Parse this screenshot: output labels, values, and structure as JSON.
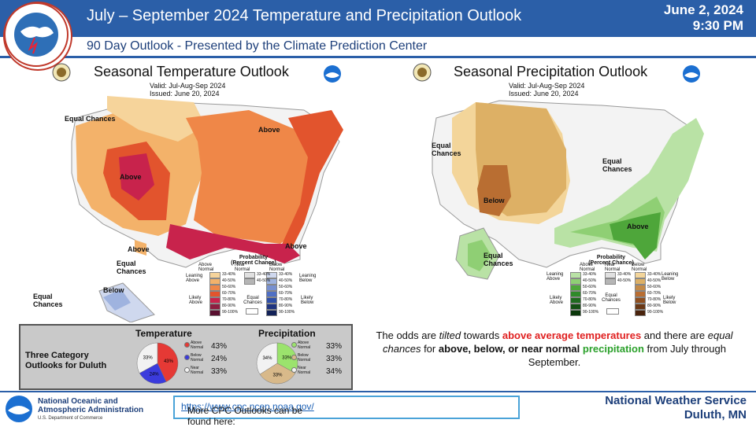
{
  "header": {
    "title": "July – September 2024 Temperature  and Precipitation Outlook",
    "date": "June 2, 2024",
    "time": "9:30 PM",
    "subtitle": "90 Day Outlook - Presented by the Climate Prediction Center"
  },
  "temp_map": {
    "title": "Seasonal Temperature Outlook",
    "valid": "Valid:  Jul-Aug-Sep 2024",
    "issued": "Issued:  June 20, 2024",
    "labels": [
      "Equal Chances",
      "Above",
      "Above",
      "Above",
      "Above",
      "Equal Chances",
      "Below",
      "Equal Chances"
    ],
    "legend_title": "Probability (Percent Chance)",
    "legend_cols": [
      "Above Normal",
      "Near Normal",
      "Below Normal"
    ],
    "leaning_above": "Leaning Above",
    "leaning_below": "Leaning Below",
    "likely_above": "Likely Above",
    "likely_below": "Likely Below",
    "equal_chances": "Equal Chances"
  },
  "precip_map": {
    "title": "Seasonal Precipitation Outlook",
    "valid": "Valid:  Jul-Aug-Sep 2024",
    "issued": "Issued:  June 20, 2024",
    "labels": [
      "Equal Chances",
      "Equal Chances",
      "Below",
      "Above",
      "Equal Chances"
    ],
    "legend_title": "Probability (Percent Chance)",
    "legend_cols": [
      "Above Normal",
      "Near Normal",
      "Below Normal"
    ],
    "leaning_above": "Leaning Above",
    "leaning_below": "Leaning Below",
    "likely_above": "Likely Above",
    "likely_below": "Likely Below",
    "equal_chances": "Equal Chances"
  },
  "legend_bins": [
    "33-40%",
    "40-50%",
    "50-60%",
    "60-70%",
    "70-80%",
    "80-90%",
    "90-100%"
  ],
  "near_bins": [
    "33-40%",
    "40-50%"
  ],
  "duluth": {
    "label": "Three Category Outlooks for Duluth",
    "temp_title": "Temperature",
    "precip_title": "Precipitation",
    "temp": [
      {
        "name": "Above Normal",
        "value": "43%",
        "pct": 43,
        "color": "#e53935"
      },
      {
        "name": "Below Normal",
        "value": "24%",
        "pct": 24,
        "color": "#3b3bdc"
      },
      {
        "name": "Near Normal",
        "value": "33%",
        "pct": 33,
        "color": "#f2f2f2"
      }
    ],
    "precip": [
      {
        "name": "Above Normal",
        "value": "33%",
        "pct": 33,
        "color": "#9be36d"
      },
      {
        "name": "Below Normal",
        "value": "33%",
        "pct": 33,
        "color": "#d8b98a"
      },
      {
        "name": "Near Normal",
        "value": "34%",
        "pct": 34,
        "color": "#f2f2f2"
      }
    ]
  },
  "odds": {
    "p1": "The odds are ",
    "tilted": "tilted",
    "p2": " towards ",
    "above_temps": "above average temperatures",
    "p3": " and there are ",
    "equal": "equal chances",
    "p4": " for ",
    "abn": "above, below, or near normal",
    "p5": " ",
    "precip": "precipitation",
    "p6": " from July through September."
  },
  "footer": {
    "noaa_line1": "National Oceanic and",
    "noaa_line2": "Atmospheric Administration",
    "noaa_line3": "U.S. Department of Commerce",
    "cpc_text": "More CPC Outlooks can be found here: ",
    "cpc_link": "https://www.cpc.ncep.noaa.gov/",
    "nws_line1": "National  Weather  Service",
    "nws_line2": "Duluth,  MN"
  },
  "colors": {
    "header_blue": "#2b5fa8",
    "above_red": "#e02020",
    "precip_green": "#2aa02a"
  }
}
